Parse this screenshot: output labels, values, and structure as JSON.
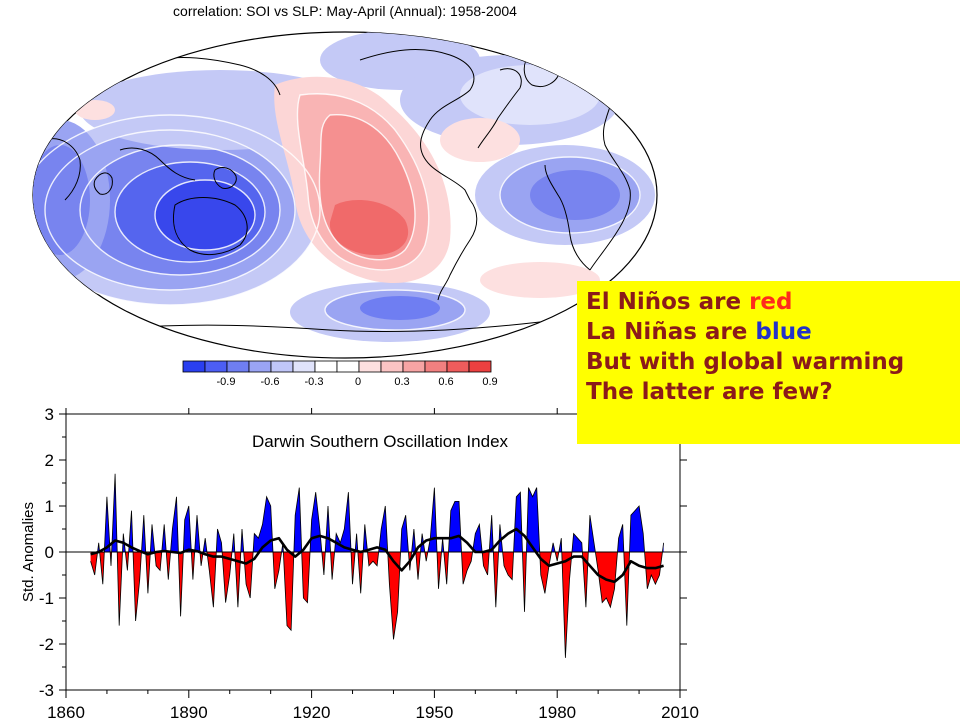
{
  "map": {
    "title": "correlation: SOI vs SLP: May-April (Annual): 1958-2004",
    "colorbar_labels": [
      "-0.9",
      "-0.6",
      "-0.3",
      "0",
      "0.3",
      "0.6",
      "0.9"
    ],
    "colorbar_colors": [
      "#2a3ff0",
      "#4c5ef4",
      "#6f7ef2",
      "#9aa4f4",
      "#c0c6f8",
      "#e0e3fb",
      "#ffffff",
      "#ffffff",
      "#fde0e0",
      "#fbc4c4",
      "#f7a4a4",
      "#f28080",
      "#ef5c5c",
      "#ec4040"
    ]
  },
  "callout": {
    "l1a": "El Niños are ",
    "l1b": "red",
    "l2a": "La Niñas are ",
    "l2b": "blue",
    "l3": "But with global warming",
    "l4": "The latter are few?"
  },
  "chart_data": {
    "type": "area",
    "title": "Darwin Southern Oscillation Index",
    "ylabel": "Std. Anomalies",
    "xlabel": "",
    "xlim": [
      1860,
      2010
    ],
    "ylim": [
      -3,
      3
    ],
    "xticks": [
      "1860",
      "1890",
      "1920",
      "1950",
      "1980",
      "2010"
    ],
    "yticks": [
      "3",
      "2",
      "1",
      "0",
      "-1",
      "-2",
      "-3"
    ],
    "positive_color": "#0000ff",
    "negative_color": "#ff0000",
    "series": [
      {
        "x": [
          1866,
          1867,
          1868,
          1869,
          1870,
          1871,
          1872,
          1873,
          1874,
          1875,
          1876,
          1877,
          1878,
          1879,
          1880,
          1881,
          1882,
          1883,
          1884,
          1885,
          1886,
          1887,
          1888,
          1889,
          1890,
          1891,
          1892,
          1893,
          1894,
          1895,
          1896,
          1897,
          1898,
          1899,
          1900,
          1901,
          1902,
          1903,
          1904,
          1905,
          1906,
          1907,
          1908,
          1909,
          1910,
          1911,
          1912,
          1913,
          1914,
          1915,
          1916,
          1917,
          1918,
          1919,
          1920,
          1921,
          1922,
          1923,
          1924,
          1925,
          1926,
          1927,
          1928,
          1929,
          1930,
          1931,
          1932,
          1933,
          1934,
          1935,
          1936,
          1937,
          1938,
          1939,
          1940,
          1941,
          1942,
          1943,
          1944,
          1945,
          1946,
          1947,
          1948,
          1949,
          1950,
          1951,
          1952,
          1953,
          1954,
          1955,
          1956,
          1957,
          1958,
          1959,
          1960,
          1961,
          1962,
          1963,
          1964,
          1965,
          1966,
          1967,
          1968,
          1969,
          1970,
          1971,
          1972,
          1973,
          1974,
          1975,
          1976,
          1977,
          1978,
          1979,
          1980,
          1981,
          1982,
          1983,
          1984,
          1985,
          1986,
          1987,
          1988,
          1989,
          1990,
          1991,
          1992,
          1993,
          1994,
          1995,
          1996,
          1997,
          1998,
          1999,
          2000,
          2001,
          2002,
          2003,
          2004,
          2005,
          2006
        ],
        "values": [
          -0.2,
          -0.5,
          0.2,
          -0.7,
          1.2,
          -0.3,
          1.7,
          -1.6,
          0.4,
          -0.4,
          0.9,
          -1.5,
          -0.6,
          0.8,
          -0.9,
          0.6,
          -0.3,
          -0.4,
          0.6,
          -0.6,
          0.5,
          1.2,
          -1.4,
          0.7,
          1.0,
          -0.6,
          0.8,
          -0.3,
          0.3,
          -0.4,
          -1.2,
          0.5,
          0.2,
          -1.1,
          -0.5,
          0.4,
          -1.2,
          0.5,
          -0.7,
          -1.0,
          0.4,
          0.3,
          0.6,
          1.2,
          1.0,
          -0.8,
          -0.4,
          0.2,
          -1.6,
          -1.7,
          0.8,
          1.4,
          -1.0,
          -1.1,
          0.7,
          1.3,
          0.5,
          -0.5,
          1.0,
          -0.6,
          0.4,
          0.2,
          0.5,
          1.3,
          -0.7,
          0.4,
          -0.9,
          0.6,
          -0.3,
          -0.2,
          -0.3,
          0.5,
          1.0,
          -0.7,
          -1.9,
          -1.3,
          0.5,
          0.8,
          -0.4,
          0.5,
          -0.6,
          0.4,
          -0.2,
          0.3,
          1.4,
          -0.8,
          0.3,
          -0.7,
          0.9,
          1.1,
          1.1,
          -0.7,
          -0.4,
          -0.2,
          0.4,
          0.6,
          -0.3,
          -0.5,
          0.8,
          -1.2,
          0.6,
          -0.3,
          -0.5,
          -0.6,
          1.2,
          1.3,
          -1.3,
          1.4,
          1.2,
          1.4,
          -0.5,
          -0.9,
          -0.3,
          0.2,
          -0.2,
          0.3,
          -2.3,
          -0.6,
          0.4,
          0.3,
          0.2,
          -1.2,
          0.8,
          0.2,
          -0.4,
          -1.1,
          -1.0,
          -1.2,
          -0.8,
          0.3,
          0.6,
          -1.6,
          0.8,
          0.9,
          1.0,
          0.4,
          -0.8,
          -0.5,
          -0.7,
          -0.5,
          0.2
        ]
      },
      {
        "name": "",
        "x": [
          1866,
          1868,
          1870,
          1872,
          1874,
          1876,
          1878,
          1880,
          1882,
          1884,
          1886,
          1888,
          1890,
          1892,
          1894,
          1896,
          1898,
          1900,
          1902,
          1904,
          1906,
          1908,
          1910,
          1912,
          1914,
          1916,
          1918,
          1920,
          1922,
          1924,
          1926,
          1928,
          1930,
          1932,
          1934,
          1936,
          1938,
          1940,
          1942,
          1944,
          1946,
          1948,
          1950,
          1952,
          1954,
          1956,
          1958,
          1960,
          1962,
          1964,
          1966,
          1968,
          1970,
          1972,
          1974,
          1976,
          1978,
          1980,
          1982,
          1984,
          1986,
          1988,
          1990,
          1992,
          1994,
          1996,
          1998,
          2000,
          2002,
          2004,
          2006
        ],
        "values": [
          -0.05,
          0.0,
          0.1,
          0.25,
          0.2,
          0.1,
          0.02,
          -0.05,
          0.0,
          0.02,
          0.0,
          -0.02,
          0.05,
          0.02,
          -0.05,
          -0.1,
          -0.1,
          -0.15,
          -0.2,
          -0.25,
          -0.15,
          0.1,
          0.25,
          0.3,
          0.05,
          -0.1,
          0.05,
          0.3,
          0.35,
          0.3,
          0.2,
          0.1,
          0.05,
          0.0,
          0.05,
          0.1,
          0.05,
          -0.2,
          -0.4,
          -0.2,
          0.1,
          0.25,
          0.3,
          0.3,
          0.3,
          0.35,
          0.2,
          0.0,
          0.0,
          0.05,
          0.25,
          0.4,
          0.5,
          0.35,
          0.1,
          -0.15,
          -0.3,
          -0.25,
          -0.2,
          -0.1,
          -0.1,
          -0.3,
          -0.5,
          -0.6,
          -0.65,
          -0.5,
          -0.2,
          -0.3,
          -0.35,
          -0.35,
          -0.3
        ]
      }
    ]
  }
}
